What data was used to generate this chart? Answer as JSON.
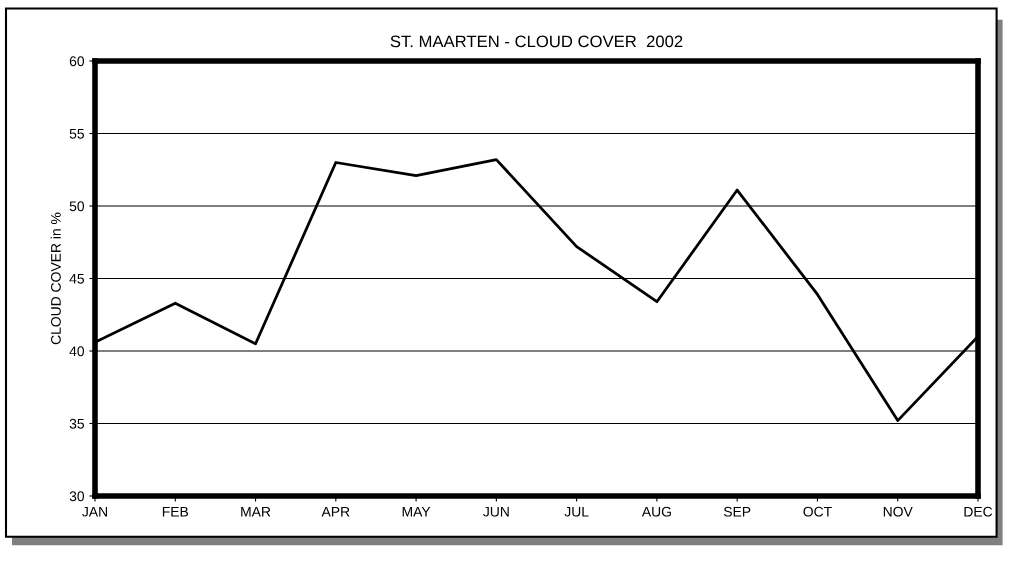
{
  "chart_data": {
    "type": "line",
    "title": "ST. MAARTEN - CLOUD COVER  2002",
    "ylabel": "CLOUD COVER in %",
    "categories": [
      "JAN",
      "FEB",
      "MAR",
      "APR",
      "MAY",
      "JUN",
      "JUL",
      "AUG",
      "SEP",
      "OCT",
      "NOV",
      "DEC"
    ],
    "series": [
      {
        "color": "#000000",
        "values": [
          40.6,
          43.3,
          40.5,
          53.0,
          52.1,
          53.2,
          47.2,
          43.4,
          51.1,
          43.9,
          35.2,
          41.0
        ]
      }
    ],
    "ylim": [
      30,
      60
    ],
    "yticks": [
      30,
      35,
      40,
      45,
      50,
      55,
      60
    ],
    "grid": "y",
    "legend": false,
    "marker": "none",
    "line_style": "solid"
  }
}
